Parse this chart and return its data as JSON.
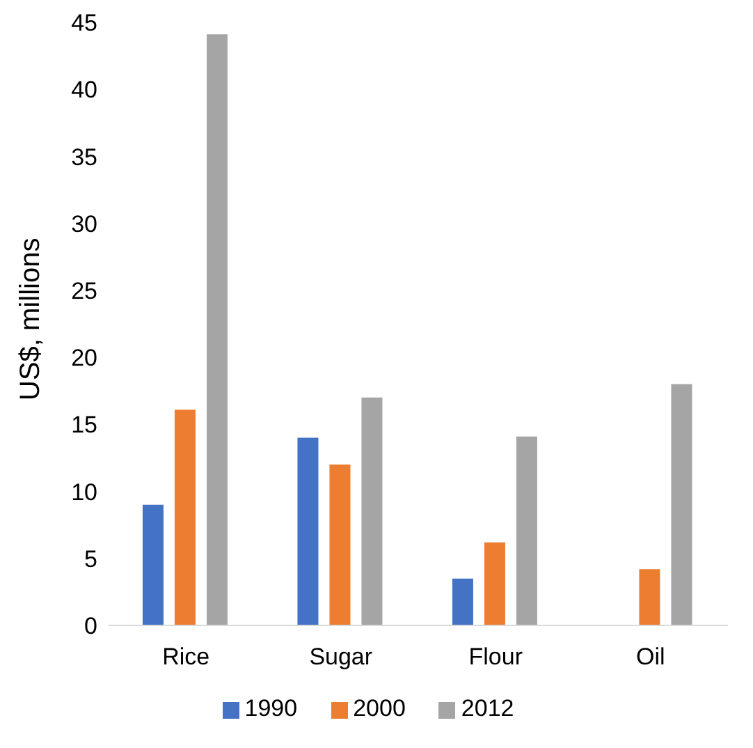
{
  "chart_data": {
    "type": "bar",
    "ylabel": "US$, millions",
    "categories": [
      "Rice",
      "Sugar",
      "Flour",
      "Oil"
    ],
    "series": [
      {
        "name": "1990",
        "color": "#4472c4",
        "values": [
          9,
          14,
          3.5,
          null
        ]
      },
      {
        "name": "2000",
        "color": "#ed7d31",
        "values": [
          16.1,
          12,
          6.2,
          4.2
        ]
      },
      {
        "name": "2012",
        "color": "#a5a5a5",
        "values": [
          44.1,
          17,
          14.1,
          18
        ]
      }
    ],
    "ylim": [
      0,
      45
    ],
    "yticks": [
      0,
      5,
      10,
      15,
      20,
      25,
      30,
      35,
      40,
      45
    ],
    "grid": false,
    "legend": "bottom"
  }
}
